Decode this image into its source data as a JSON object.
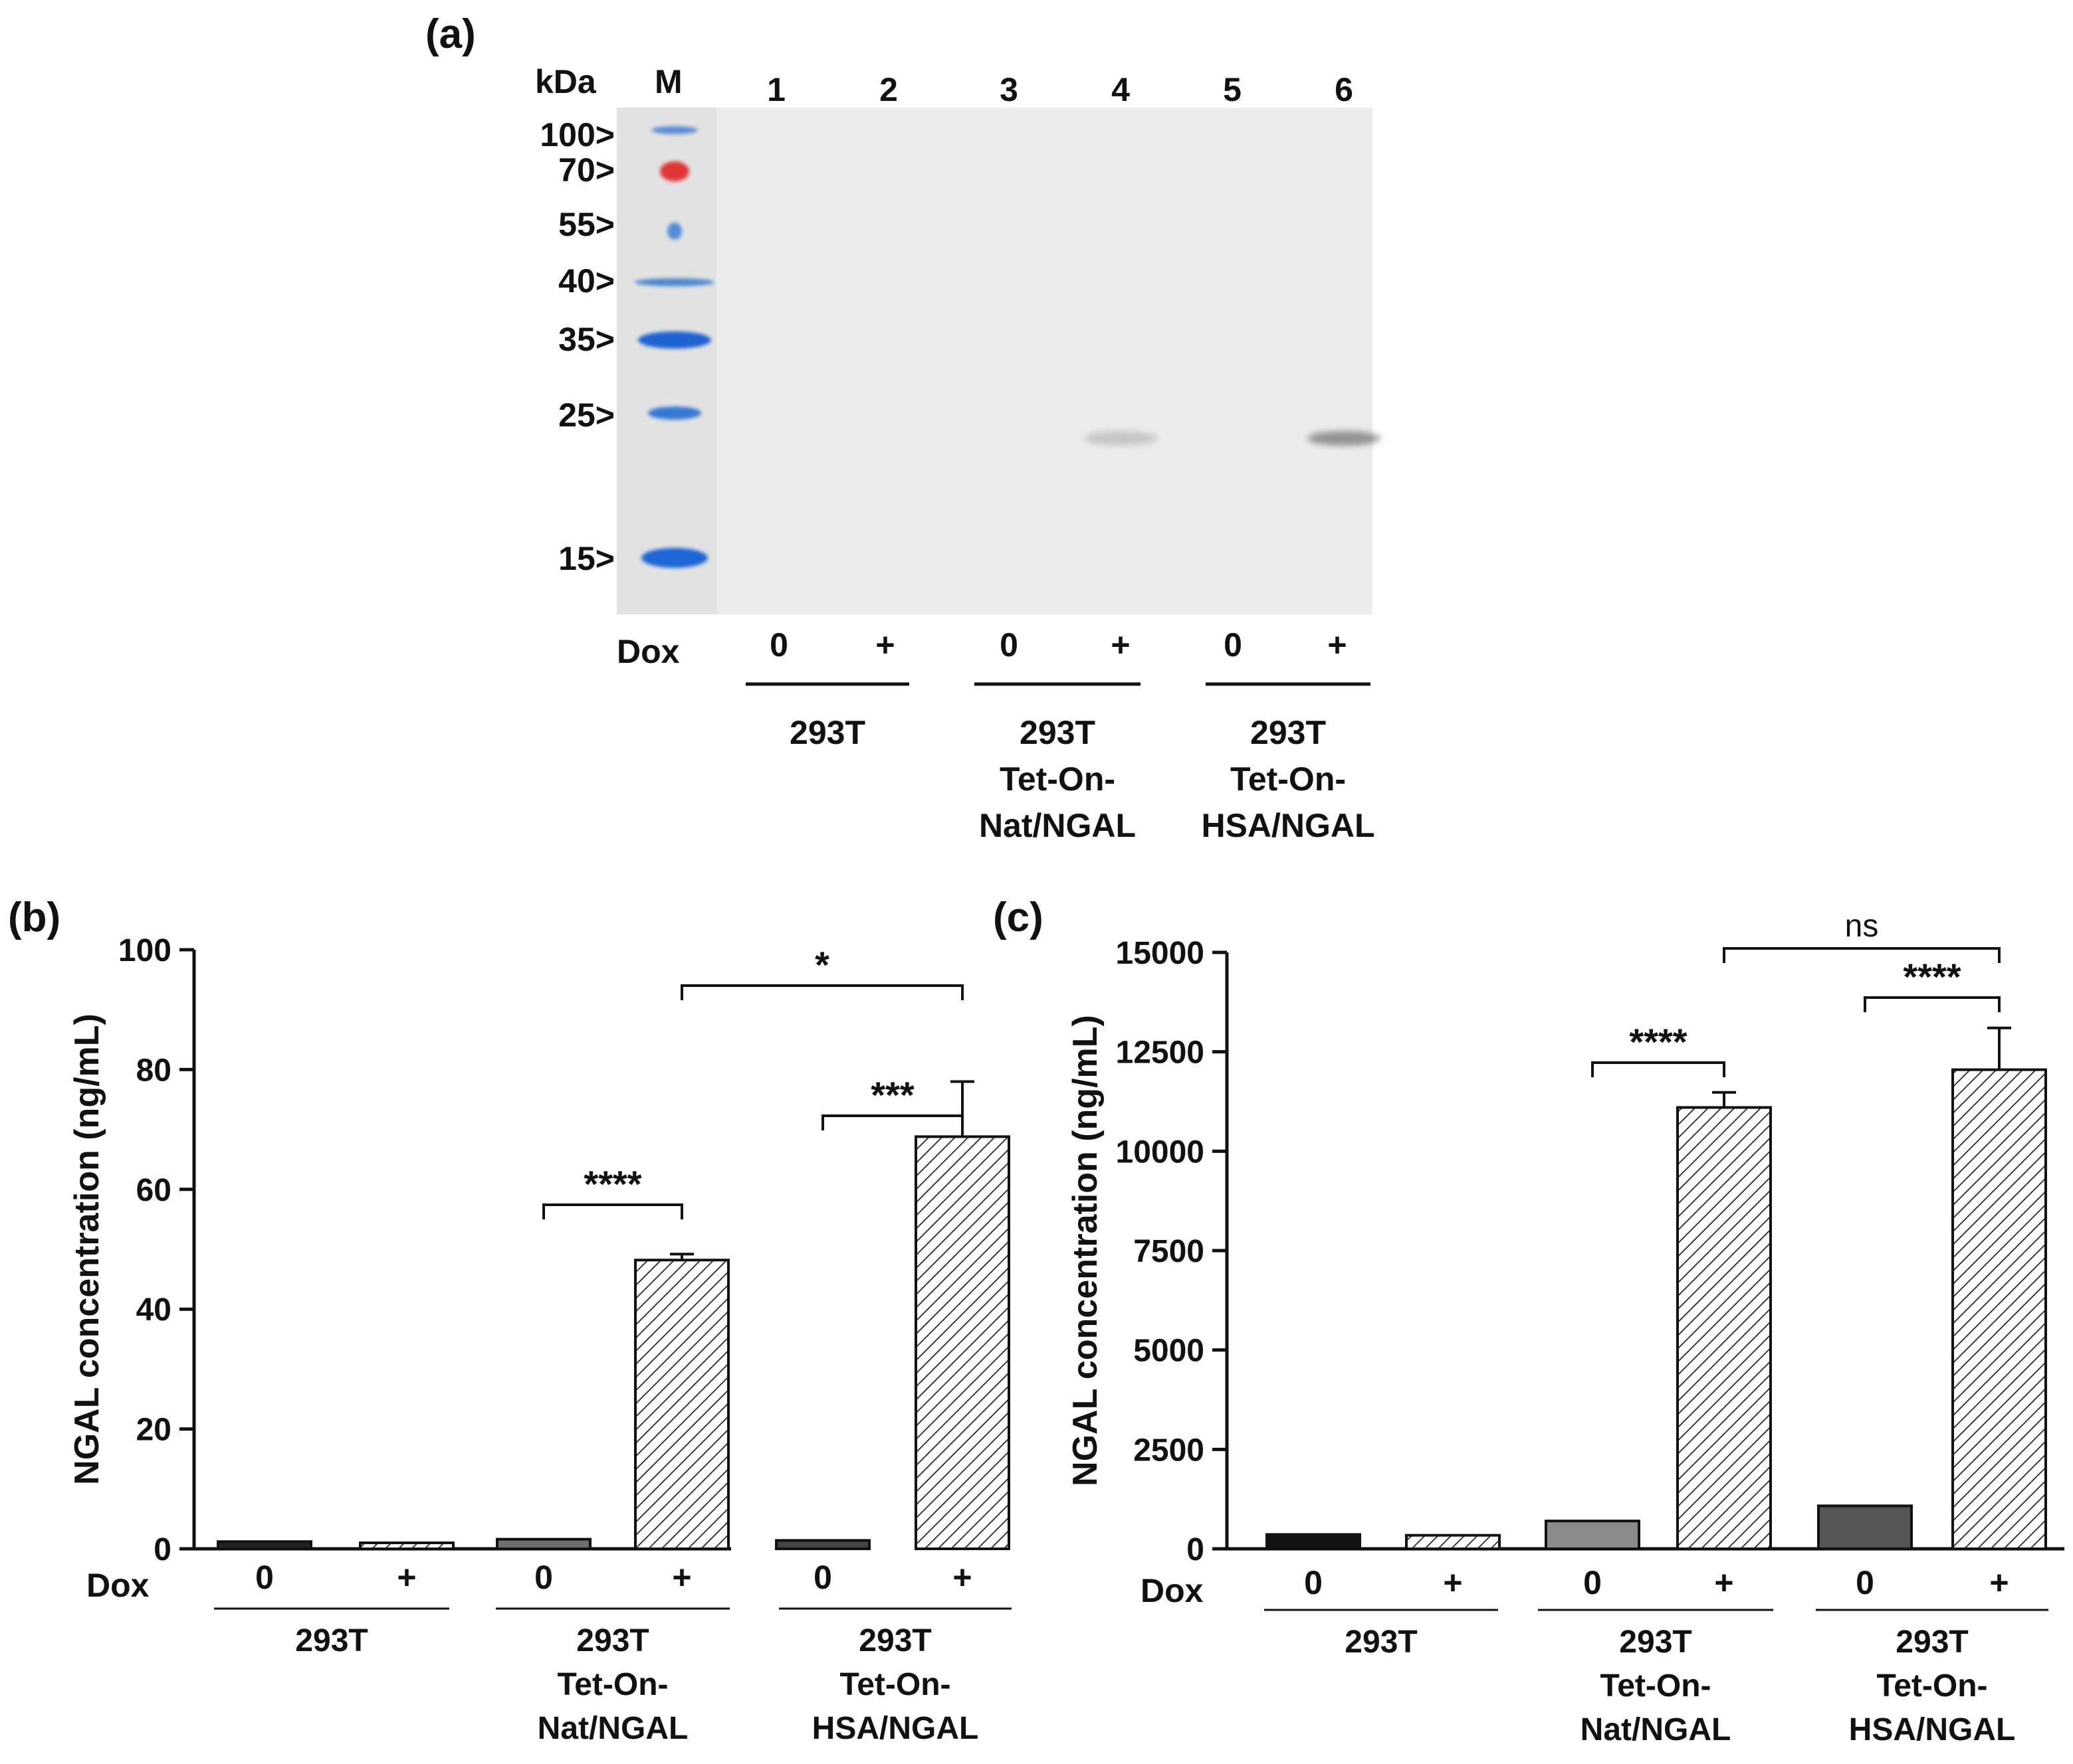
{
  "panel_a": {
    "label": "(a)",
    "kda_label": "kDa",
    "marker_label": "M",
    "lane_numbers": [
      "1",
      "2",
      "3",
      "4",
      "5",
      "6"
    ],
    "marker_sizes": [
      "100>",
      "70>",
      "55>",
      "40>",
      "35>",
      "25>",
      "15>"
    ],
    "dox_label": "Dox",
    "dox_values": [
      "0",
      "+",
      "0",
      "+",
      "0",
      "+"
    ],
    "groups": [
      [
        "293T"
      ],
      [
        "293T",
        "Tet-On-",
        "Nat/NGAL"
      ],
      [
        "293T",
        "Tet-On-",
        "HSA/NGAL"
      ]
    ],
    "marker_colors": [
      "#2f6fcf",
      "#e02020",
      "#3a7fd6",
      "#2a6fc8",
      "#1f62d0",
      "#2d73d4",
      "#1e66d6"
    ],
    "band_intensity": [
      0,
      0,
      0,
      0.25,
      0,
      0.6
    ]
  },
  "chart_data": [
    {
      "panel": "(b)",
      "type": "bar",
      "ylabel": "NGAL concentration (ng/mL)",
      "ylim": [
        0,
        100
      ],
      "yticks": [
        "0",
        "20",
        "40",
        "60",
        "80",
        "100"
      ],
      "dox_label": "Dox",
      "dox_values": [
        "0",
        "+",
        "0",
        "+",
        "0",
        "+"
      ],
      "groups": [
        [
          "293T"
        ],
        [
          "293T",
          "Tet-On-",
          "Nat/NGAL"
        ],
        [
          "293T",
          "Tet-On-",
          "HSA/NGAL"
        ]
      ],
      "values": [
        1.2,
        1.0,
        1.6,
        48.2,
        1.4,
        68.8
      ],
      "errors": [
        0,
        0,
        0,
        1.0,
        0,
        9.2
      ],
      "fills": [
        "#222222",
        "hatch",
        "#6e6e6e",
        "hatch",
        "#444444",
        "hatch"
      ],
      "significance": [
        {
          "from": 2,
          "to": 3,
          "label": "****"
        },
        {
          "from": 4,
          "to": 5,
          "label": "***"
        },
        {
          "from": 3,
          "to": 5,
          "label": "*"
        }
      ]
    },
    {
      "panel": "(c)",
      "type": "bar",
      "ylabel": "NGAL concentration (ng/mL)",
      "ylim": [
        0,
        15000
      ],
      "yticks": [
        "0",
        "2500",
        "5000",
        "7500",
        "10000",
        "12500",
        "15000"
      ],
      "dox_label": "Dox",
      "dox_values": [
        "0",
        "+",
        "0",
        "+",
        "0",
        "+"
      ],
      "groups": [
        [
          "293T"
        ],
        [
          "293T",
          "Tet-On-",
          "Nat/NGAL"
        ],
        [
          "293T",
          "Tet-On-",
          "HSA/NGAL"
        ]
      ],
      "values": [
        360,
        340,
        700,
        11100,
        1080,
        12050
      ],
      "errors": [
        0,
        0,
        0,
        380,
        0,
        1050
      ],
      "fills": [
        "#111111",
        "hatch",
        "#8a8a8a",
        "hatch",
        "#555555",
        "hatch"
      ],
      "significance": [
        {
          "from": 2,
          "to": 3,
          "label": "****"
        },
        {
          "from": 4,
          "to": 5,
          "label": "****"
        },
        {
          "from": 3,
          "to": 5,
          "label": "ns"
        }
      ]
    }
  ]
}
